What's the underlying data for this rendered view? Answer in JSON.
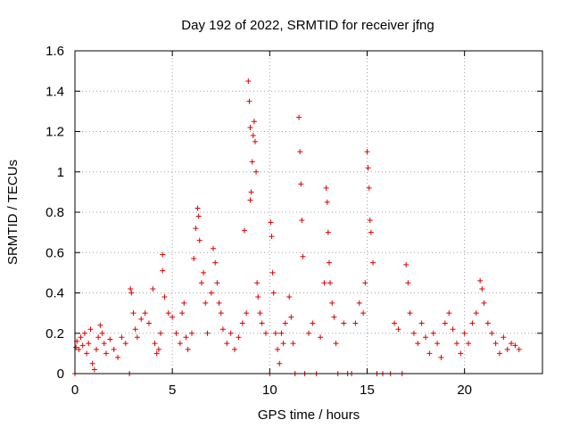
{
  "chart_data": {
    "type": "scatter",
    "title": "Day 192 of 2022, SRMTID for receiver jfng",
    "xlabel": "GPS time / hours",
    "ylabel": "SRMTID / TECUs",
    "xlim": [
      0,
      24
    ],
    "ylim": [
      0,
      1.6
    ],
    "xticks": [
      0,
      5,
      10,
      15,
      20
    ],
    "xtick_labels": [
      "0",
      "5",
      "10",
      "15",
      "20"
    ],
    "yticks": [
      0,
      0.2,
      0.4,
      0.6,
      0.8,
      1.0,
      1.2,
      1.4,
      1.6
    ],
    "ytick_labels": [
      "0",
      "0.2",
      "0.4",
      "0.6",
      "0.8",
      "1",
      "1.2",
      "1.4",
      "1.6"
    ],
    "grid": true,
    "marker": "plus",
    "color": "#e00000",
    "series": [
      {
        "name": "SRMTID",
        "points": [
          [
            0.0,
            0.0
          ],
          [
            0.05,
            0.13
          ],
          [
            0.1,
            0.16
          ],
          [
            0.2,
            0.12
          ],
          [
            0.3,
            0.18
          ],
          [
            0.4,
            0.14
          ],
          [
            0.5,
            0.2
          ],
          [
            0.6,
            0.1
          ],
          [
            0.7,
            0.15
          ],
          [
            0.8,
            0.22
          ],
          [
            0.9,
            0.05
          ],
          [
            1.0,
            0.02
          ],
          [
            1.1,
            0.12
          ],
          [
            1.2,
            0.18
          ],
          [
            1.3,
            0.24
          ],
          [
            1.4,
            0.2
          ],
          [
            1.5,
            0.15
          ],
          [
            1.6,
            0.1
          ],
          [
            1.8,
            0.17
          ],
          [
            2.0,
            0.12
          ],
          [
            2.2,
            0.08
          ],
          [
            2.4,
            0.18
          ],
          [
            2.6,
            0.15
          ],
          [
            2.8,
            0.0
          ],
          [
            2.85,
            0.42
          ],
          [
            2.9,
            0.4
          ],
          [
            3.0,
            0.3
          ],
          [
            3.1,
            0.22
          ],
          [
            3.2,
            0.18
          ],
          [
            3.4,
            0.27
          ],
          [
            3.6,
            0.3
          ],
          [
            3.8,
            0.25
          ],
          [
            4.0,
            0.42
          ],
          [
            4.1,
            0.15
          ],
          [
            4.2,
            0.1
          ],
          [
            4.3,
            0.12
          ],
          [
            4.4,
            0.2
          ],
          [
            4.5,
            0.59
          ],
          [
            4.5,
            0.51
          ],
          [
            4.6,
            0.38
          ],
          [
            4.8,
            0.3
          ],
          [
            5.0,
            0.28
          ],
          [
            5.2,
            0.2
          ],
          [
            5.4,
            0.15
          ],
          [
            5.5,
            0.3
          ],
          [
            5.6,
            0.35
          ],
          [
            5.7,
            0.18
          ],
          [
            5.8,
            0.12
          ],
          [
            6.0,
            0.2
          ],
          [
            6.1,
            0.57
          ],
          [
            6.2,
            0.72
          ],
          [
            6.3,
            0.82
          ],
          [
            6.35,
            0.78
          ],
          [
            6.4,
            0.66
          ],
          [
            6.5,
            0.45
          ],
          [
            6.6,
            0.5
          ],
          [
            6.7,
            0.35
          ],
          [
            6.8,
            0.2
          ],
          [
            7.0,
            0.4
          ],
          [
            7.1,
            0.62
          ],
          [
            7.2,
            0.55
          ],
          [
            7.3,
            0.45
          ],
          [
            7.4,
            0.35
          ],
          [
            7.5,
            0.3
          ],
          [
            7.6,
            0.22
          ],
          [
            7.8,
            0.15
          ],
          [
            8.0,
            0.2
          ],
          [
            8.2,
            0.12
          ],
          [
            8.4,
            0.18
          ],
          [
            8.6,
            0.25
          ],
          [
            8.7,
            0.71
          ],
          [
            8.8,
            0.3
          ],
          [
            8.9,
            1.45
          ],
          [
            8.95,
            1.35
          ],
          [
            9.0,
            1.22
          ],
          [
            9.0,
            0.86
          ],
          [
            9.05,
            0.9
          ],
          [
            9.1,
            1.05
          ],
          [
            9.15,
            1.18
          ],
          [
            9.2,
            1.25
          ],
          [
            9.25,
            1.15
          ],
          [
            9.3,
            1.0
          ],
          [
            9.35,
            0.45
          ],
          [
            9.4,
            0.38
          ],
          [
            9.5,
            0.3
          ],
          [
            9.6,
            0.25
          ],
          [
            9.8,
            0.2
          ],
          [
            10.0,
            0.0
          ],
          [
            10.05,
            0.75
          ],
          [
            10.1,
            0.68
          ],
          [
            10.15,
            0.5
          ],
          [
            10.2,
            0.4
          ],
          [
            10.3,
            0.2
          ],
          [
            10.4,
            0.12
          ],
          [
            10.5,
            0.05
          ],
          [
            10.6,
            0.2
          ],
          [
            10.7,
            0.15
          ],
          [
            10.8,
            0.25
          ],
          [
            11.0,
            0.38
          ],
          [
            11.1,
            0.28
          ],
          [
            11.2,
            0.15
          ],
          [
            11.3,
            0.0
          ],
          [
            11.5,
            1.27
          ],
          [
            11.55,
            1.1
          ],
          [
            11.6,
            0.94
          ],
          [
            11.65,
            0.76
          ],
          [
            11.7,
            0.58
          ],
          [
            11.8,
            0.0
          ],
          [
            12.0,
            0.2
          ],
          [
            12.2,
            0.25
          ],
          [
            12.4,
            0.0
          ],
          [
            12.6,
            0.18
          ],
          [
            12.8,
            0.45
          ],
          [
            12.9,
            0.92
          ],
          [
            12.95,
            0.85
          ],
          [
            13.0,
            0.7
          ],
          [
            13.05,
            0.55
          ],
          [
            13.1,
            0.45
          ],
          [
            13.2,
            0.35
          ],
          [
            13.3,
            0.28
          ],
          [
            13.4,
            0.15
          ],
          [
            13.5,
            0.0
          ],
          [
            13.8,
            0.25
          ],
          [
            14.0,
            0.0
          ],
          [
            14.2,
            0.0
          ],
          [
            14.4,
            0.25
          ],
          [
            14.6,
            0.35
          ],
          [
            14.8,
            0.3
          ],
          [
            14.9,
            0.45
          ],
          [
            15.0,
            1.1
          ],
          [
            15.05,
            1.02
          ],
          [
            15.1,
            0.92
          ],
          [
            15.15,
            0.76
          ],
          [
            15.2,
            0.7
          ],
          [
            15.3,
            0.55
          ],
          [
            15.5,
            0.0
          ],
          [
            15.8,
            0.0
          ],
          [
            16.2,
            0.0
          ],
          [
            16.4,
            0.25
          ],
          [
            16.6,
            0.22
          ],
          [
            16.8,
            0.0
          ],
          [
            17.0,
            0.54
          ],
          [
            17.1,
            0.45
          ],
          [
            17.2,
            0.3
          ],
          [
            17.4,
            0.2
          ],
          [
            17.6,
            0.15
          ],
          [
            17.8,
            0.25
          ],
          [
            18.0,
            0.18
          ],
          [
            18.2,
            0.1
          ],
          [
            18.4,
            0.2
          ],
          [
            18.6,
            0.15
          ],
          [
            18.8,
            0.08
          ],
          [
            19.0,
            0.25
          ],
          [
            19.2,
            0.3
          ],
          [
            19.4,
            0.22
          ],
          [
            19.6,
            0.15
          ],
          [
            19.8,
            0.1
          ],
          [
            20.0,
            0.2
          ],
          [
            20.2,
            0.15
          ],
          [
            20.4,
            0.25
          ],
          [
            20.6,
            0.3
          ],
          [
            20.8,
            0.46
          ],
          [
            20.9,
            0.42
          ],
          [
            21.0,
            0.35
          ],
          [
            21.2,
            0.25
          ],
          [
            21.4,
            0.2
          ],
          [
            21.6,
            0.15
          ],
          [
            21.8,
            0.1
          ],
          [
            22.0,
            0.18
          ],
          [
            22.2,
            0.12
          ],
          [
            22.4,
            0.15
          ],
          [
            22.6,
            0.14
          ],
          [
            22.8,
            0.12
          ]
        ]
      }
    ]
  }
}
